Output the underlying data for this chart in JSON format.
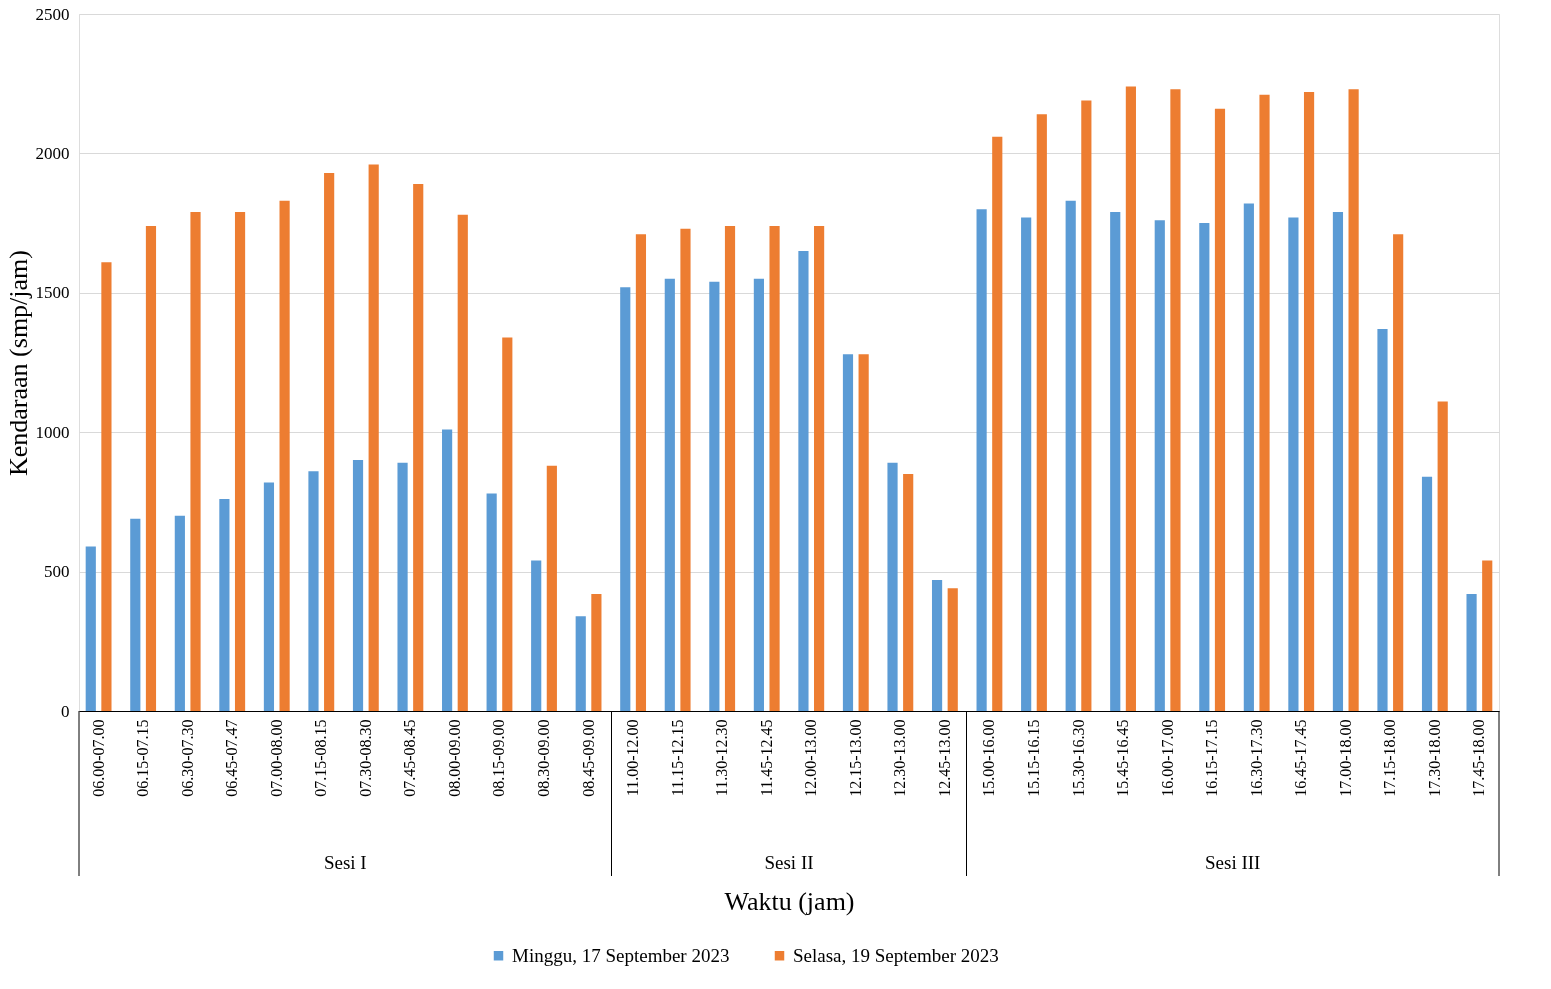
{
  "chart_data": {
    "type": "bar",
    "xlabel": "Waktu (jam)",
    "ylabel": "Kendaraan (smp/jam)",
    "categories": [
      "06.00-07.00",
      "06.15-07.15",
      "06.30-07.30",
      "06.45-07.47",
      "07.00-08.00",
      "07.15-08.15",
      "07.30-08.30",
      "07.45-08.45",
      "08.00-09.00",
      "08.15-09.00",
      "08.30-09.00",
      "08.45-09.00",
      "11.00-12.00",
      "11.15-12.15",
      "11.30-12.30",
      "11.45-12.45",
      "12.00-13.00",
      "12.15-13.00",
      "12.30-13.00",
      "12.45-13.00",
      "15.00-16.00",
      "15.15-16.15",
      "15.30-16.30",
      "15.45-16.45",
      "16.00-17.00",
      "16.15-17.15",
      "16.30-17.30",
      "16.45-17.45",
      "17.00-18.00",
      "17.15-18.00",
      "17.30-18.00",
      "17.45-18.00"
    ],
    "series": [
      {
        "name": "Minggu, 17 September 2023",
        "color": "#5b9bd5",
        "values": [
          590,
          690,
          700,
          760,
          820,
          860,
          900,
          890,
          1010,
          780,
          540,
          340,
          1520,
          1550,
          1540,
          1550,
          1650,
          1280,
          890,
          470,
          1800,
          1770,
          1830,
          1790,
          1760,
          1750,
          1820,
          1770,
          1790,
          1370,
          840,
          420
        ]
      },
      {
        "name": "Selasa, 19 September 2023",
        "color": "#ed7d31",
        "values": [
          1610,
          1740,
          1790,
          1790,
          1830,
          1930,
          1960,
          1890,
          1780,
          1340,
          880,
          420,
          1710,
          1730,
          1740,
          1740,
          1740,
          1280,
          850,
          440,
          2060,
          2140,
          2190,
          2240,
          2230,
          2160,
          2210,
          2220,
          2230,
          1710,
          1110,
          540
        ]
      }
    ],
    "ylim": [
      0,
      2500
    ],
    "yticks": [
      0,
      500,
      1000,
      1500,
      2000,
      2500
    ],
    "grid": "y",
    "legend": "bottom",
    "annotations": [
      "Sesi I",
      "Sesi II",
      "Sesi III"
    ]
  }
}
